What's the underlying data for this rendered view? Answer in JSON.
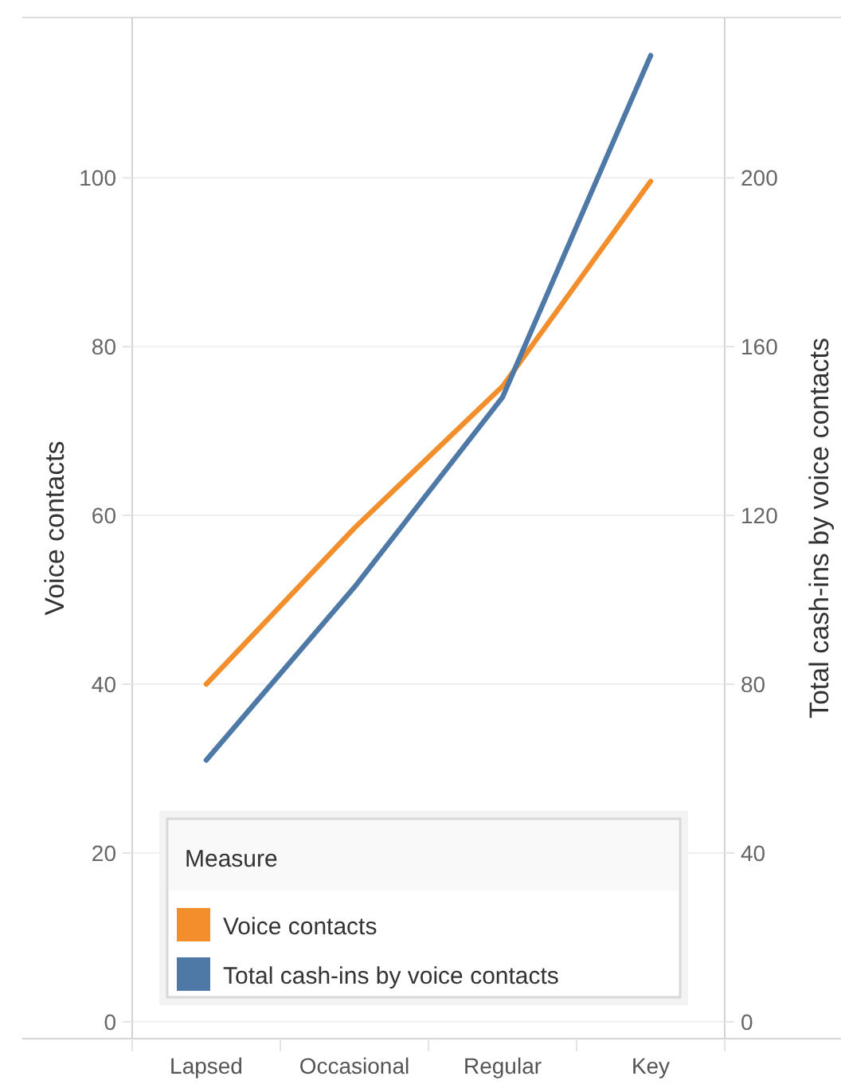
{
  "chart_data": {
    "type": "line",
    "categories": [
      "Lapsed",
      "Occasional",
      "Regular",
      "Key"
    ],
    "ylabel": "Voice contacts",
    "y2label": "Total cash-ins by voice contacts",
    "legend_title": "Measure",
    "legend": "bottom",
    "grid": "y",
    "ylim": [
      -2,
      119
    ],
    "yticks": [
      0,
      20,
      40,
      60,
      80,
      100
    ],
    "y2lim": [
      -4,
      238
    ],
    "y2ticks": [
      0,
      40,
      80,
      120,
      160,
      200
    ],
    "series": [
      {
        "name": "Voice contacts",
        "color": "#f28e2b",
        "values": [
          40,
          58.5,
          75.3,
          99.6
        ]
      },
      {
        "name": "Total cash-ins by voice contacts",
        "color": "#4e79a7",
        "axis": "y2",
        "values": [
          62,
          103,
          148,
          229
        ]
      }
    ]
  }
}
